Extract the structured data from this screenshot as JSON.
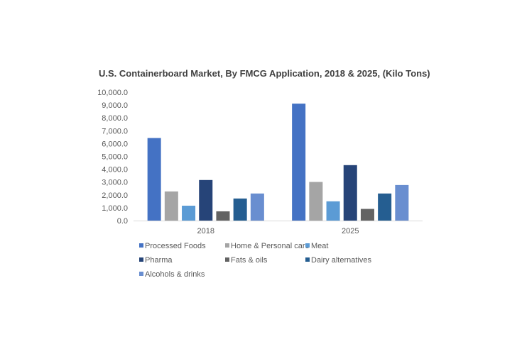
{
  "chart_data": {
    "type": "bar",
    "title": "U.S. Containerboard Market, By FMCG Application, 2018 & 2025, (Kilo Tons)",
    "xlabel": "",
    "ylabel": "",
    "ylim": [
      0,
      10000
    ],
    "yticks": [
      "0.0",
      "1,000.0",
      "2,000.0",
      "3,000.0",
      "4,000.0",
      "5,000.0",
      "6,000.0",
      "7,000.0",
      "8,000.0",
      "9,000.0",
      "10,000.0"
    ],
    "grid": false,
    "legend_position": "bottom",
    "categories": [
      "2018",
      "2025"
    ],
    "series": [
      {
        "name": "Processed Foods",
        "color": "#4472C4",
        "values": [
          6430,
          9110
        ]
      },
      {
        "name": "Home & Personal care",
        "color": "#A5A5A5",
        "values": [
          2270,
          3010
        ]
      },
      {
        "name": "Meat",
        "color": "#5B9BD5",
        "values": [
          1160,
          1500
        ]
      },
      {
        "name": "Pharma",
        "color": "#264478",
        "values": [
          3160,
          4320
        ]
      },
      {
        "name": "Fats & oils",
        "color": "#636363",
        "values": [
          720,
          910
        ]
      },
      {
        "name": "Dairy alternatives",
        "color": "#255E91",
        "values": [
          1720,
          2110
        ]
      },
      {
        "name": "Alcohols & drinks",
        "color": "#698ED0",
        "values": [
          2110,
          2770
        ]
      }
    ]
  }
}
